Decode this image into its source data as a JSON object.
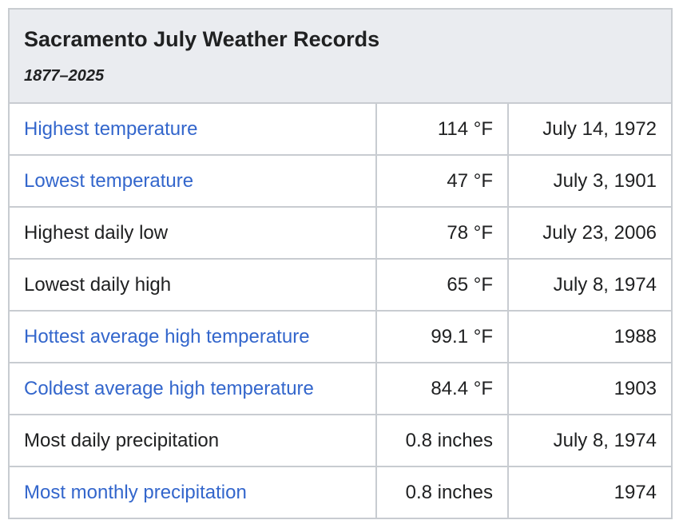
{
  "header": {
    "title": "Sacramento July Weather Records",
    "period": "1877–2025"
  },
  "rows": [
    {
      "label": "Highest temperature",
      "value": "114 °F",
      "date": "July 14, 1972",
      "is_link": true
    },
    {
      "label": "Lowest temperature",
      "value": "47 °F",
      "date": "July 3, 1901",
      "is_link": true
    },
    {
      "label": "Highest daily low",
      "value": "78 °F",
      "date": "July 23, 2006",
      "is_link": false
    },
    {
      "label": "Lowest daily high",
      "value": "65 °F",
      "date": "July 8, 1974",
      "is_link": false
    },
    {
      "label": "Hottest average high temperature",
      "value": "99.1 °F",
      "date": "1988",
      "is_link": true
    },
    {
      "label": "Coldest average high temperature",
      "value": "84.4 °F",
      "date": "1903",
      "is_link": true
    },
    {
      "label": "Most daily precipitation",
      "value": "0.8 inches",
      "date": "July 8, 1974",
      "is_link": false
    },
    {
      "label": "Most monthly precipitation",
      "value": "0.8 inches",
      "date": "1974",
      "is_link": true
    }
  ],
  "colors": {
    "link": "#3366cc",
    "text": "#202122",
    "header_bg": "#eaecf0",
    "border": "#c8ccd1"
  }
}
